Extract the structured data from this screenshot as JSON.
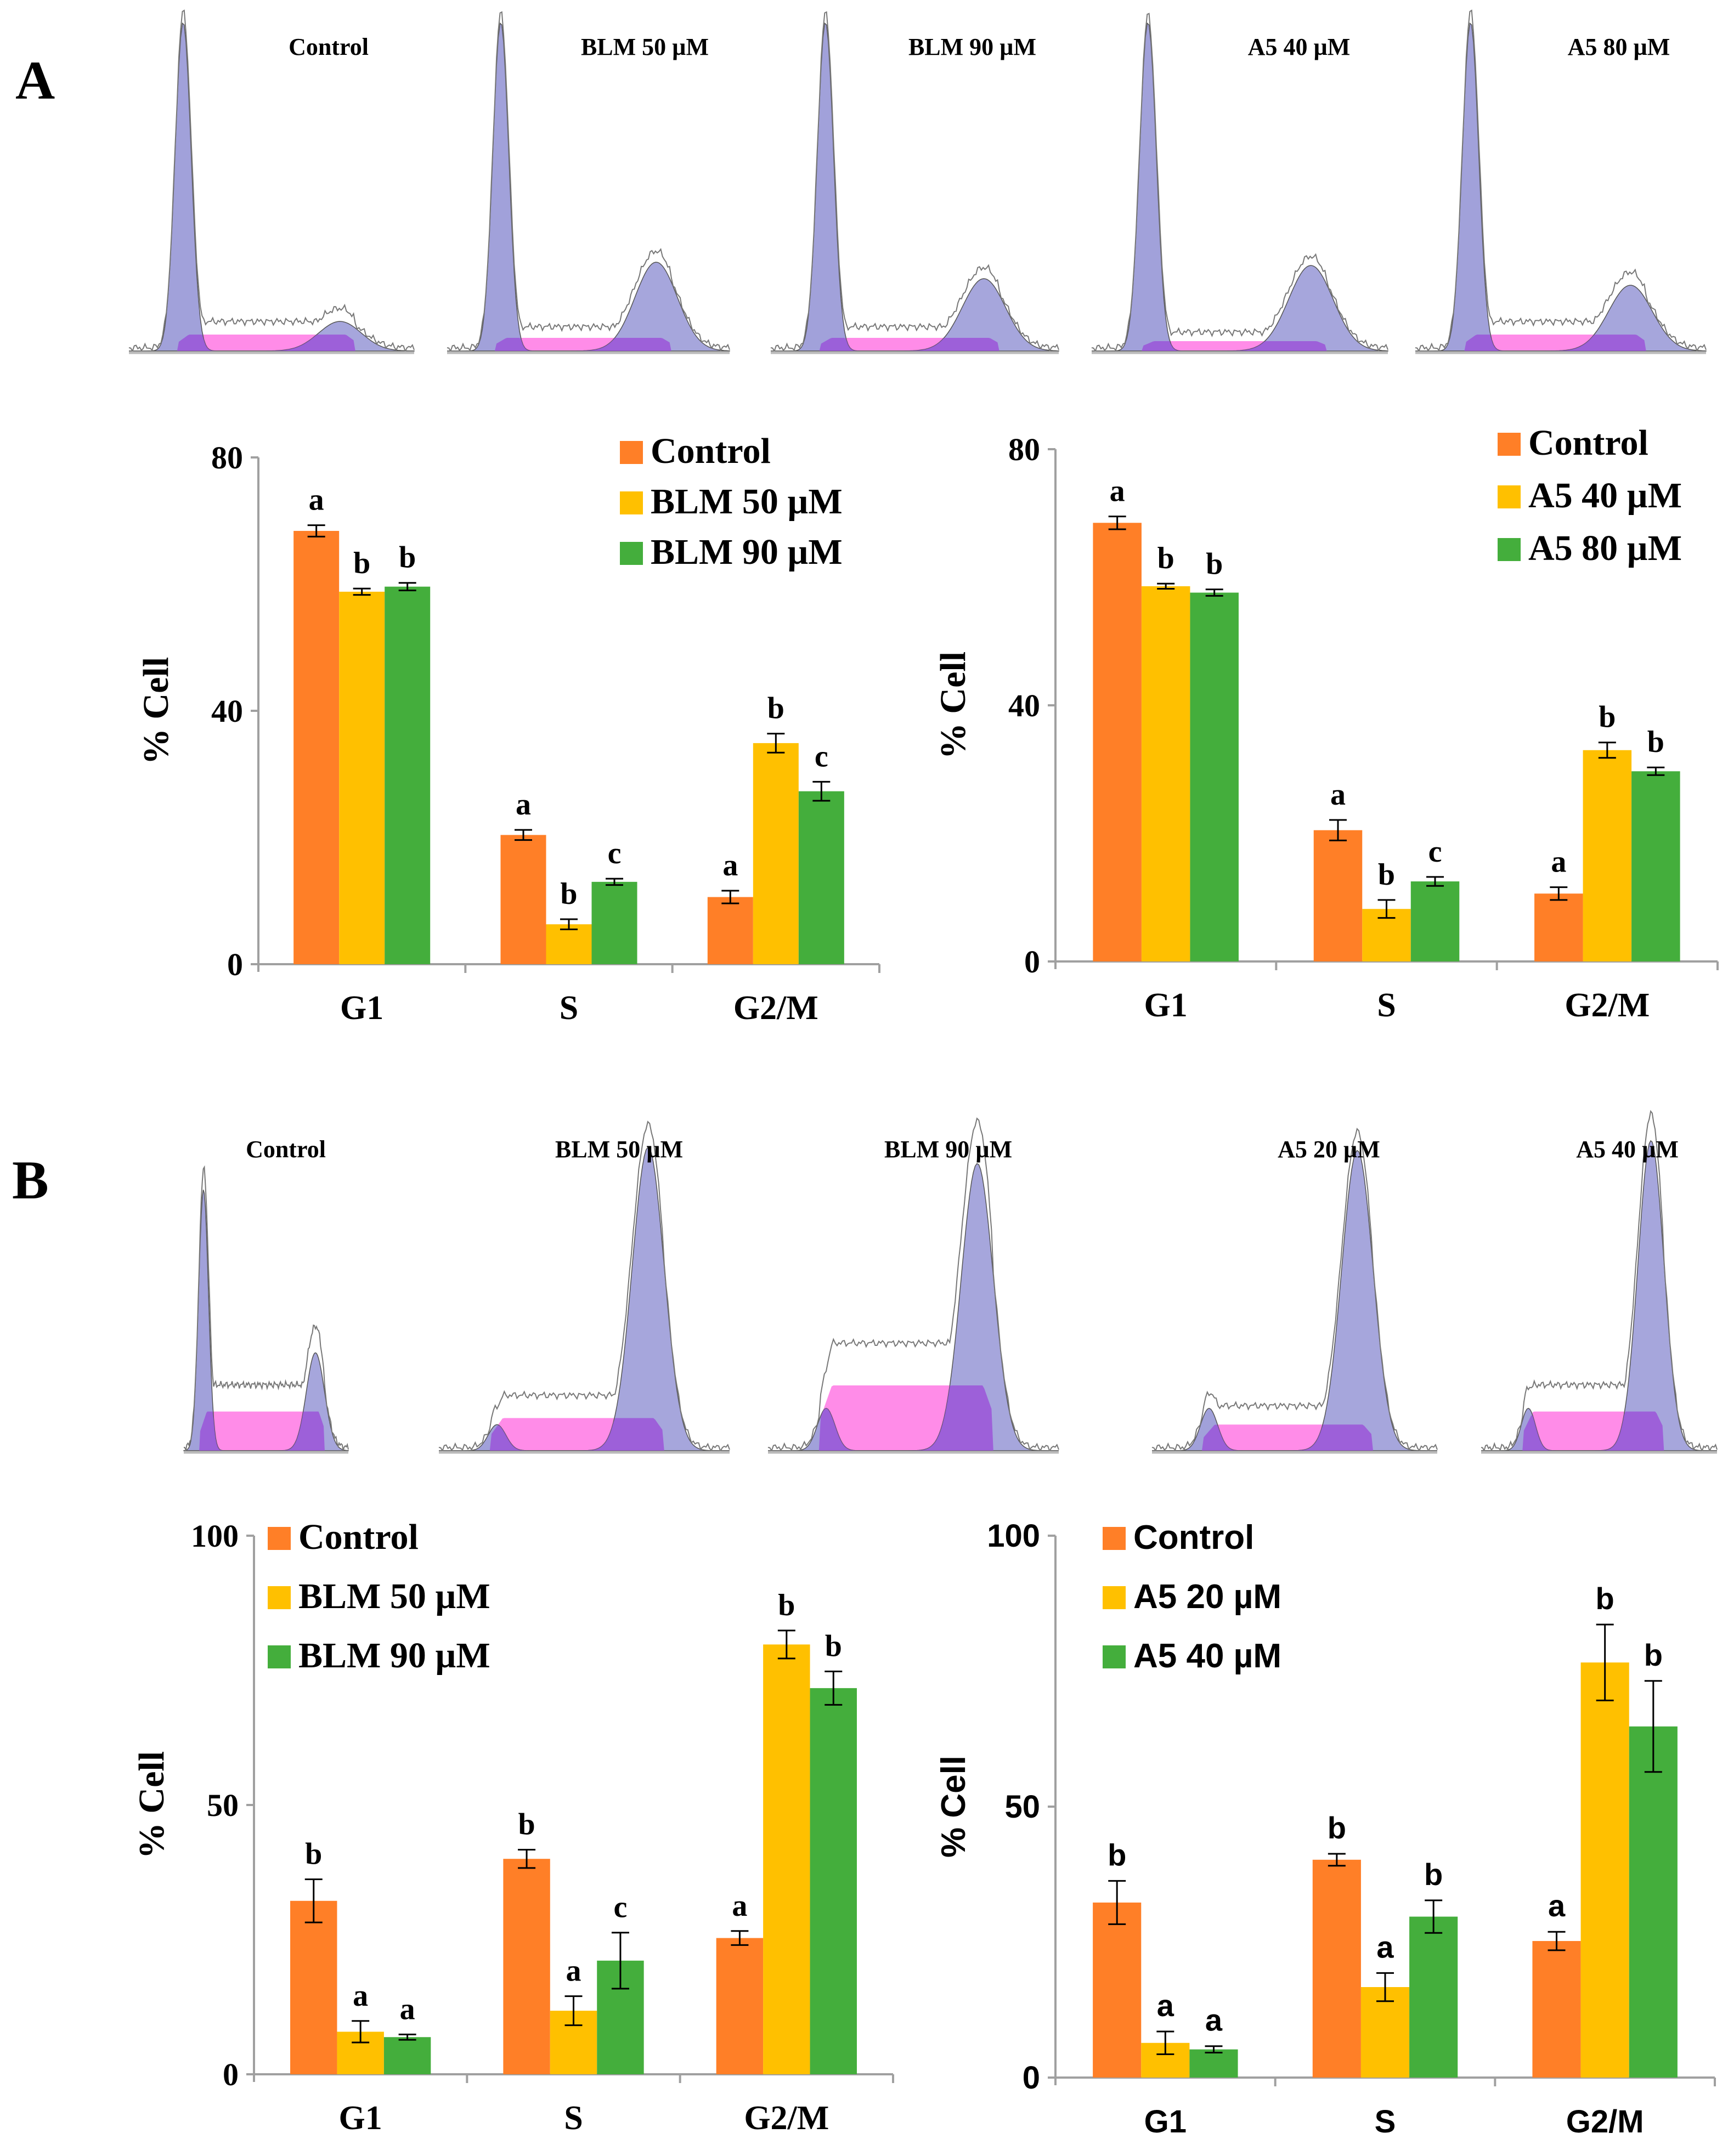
{
  "panels": {
    "A": {
      "label": "A"
    },
    "B": {
      "label": "B"
    }
  },
  "histograms": {
    "A": [
      {
        "title": "Control",
        "g1_peak": 1.0,
        "s_level": 0.05,
        "g2_peak": 0.09
      },
      {
        "title": "BLM 50 µM",
        "g1_peak": 1.0,
        "s_level": 0.04,
        "g2_peak": 0.27
      },
      {
        "title": "BLM 90 µM",
        "g1_peak": 1.0,
        "s_level": 0.04,
        "g2_peak": 0.22
      },
      {
        "title": "A5 40 µM",
        "g1_peak": 1.0,
        "s_level": 0.03,
        "g2_peak": 0.26
      },
      {
        "title": "A5 80 µM",
        "g1_peak": 1.0,
        "s_level": 0.05,
        "g2_peak": 0.2
      }
    ],
    "B": [
      {
        "title": "Control",
        "g1_peak": 0.8,
        "s_level": 0.12,
        "g2_peak": 0.3
      },
      {
        "title": "BLM 50 µM",
        "g1_peak": 0.08,
        "s_level": 0.1,
        "g2_peak": 0.93
      },
      {
        "title": "BLM 90 µM",
        "g1_peak": 0.13,
        "s_level": 0.2,
        "g2_peak": 0.88
      },
      {
        "title": "A5 20 µM",
        "g1_peak": 0.13,
        "s_level": 0.08,
        "g2_peak": 0.92
      },
      {
        "title": "A5 40 µM",
        "g1_peak": 0.13,
        "s_level": 0.12,
        "g2_peak": 0.95
      }
    ]
  },
  "colors": {
    "control": "#FF7F27",
    "low_dose": "#FFC000",
    "high_dose": "#44AE3C",
    "hist_fill": "#9C9CD8",
    "hist_s": "#FF7FE6",
    "hist_overlap": "#9A4CD8",
    "axis": "#A0A0A0"
  },
  "chart_data": [
    {
      "id": "A-left",
      "type": "bar",
      "title": "",
      "xlabel": "",
      "ylabel": "% Cell",
      "ylim": [
        0,
        80
      ],
      "yticks": [
        0,
        40,
        80
      ],
      "categories": [
        "G1",
        "S",
        "G2/M"
      ],
      "legend_position": "top-right",
      "series": [
        {
          "name": "Control",
          "values": [
            68.4,
            20.4,
            10.6
          ],
          "errors": [
            0.9,
            0.8,
            1.0
          ],
          "letters": [
            "a",
            "a",
            "a"
          ]
        },
        {
          "name": "BLM 50 µM",
          "values": [
            58.8,
            6.3,
            34.9
          ],
          "errors": [
            0.5,
            0.8,
            1.5
          ],
          "letters": [
            "b",
            "b",
            "b"
          ]
        },
        {
          "name": "BLM 90 µM",
          "values": [
            59.6,
            13.0,
            27.3
          ],
          "errors": [
            0.6,
            0.5,
            1.5
          ],
          "letters": [
            "b",
            "c",
            "c"
          ]
        }
      ]
    },
    {
      "id": "A-right",
      "type": "bar",
      "title": "",
      "xlabel": "",
      "ylabel": "% Cell",
      "ylim": [
        0,
        80
      ],
      "yticks": [
        0,
        40,
        80
      ],
      "categories": [
        "G1",
        "S",
        "G2/M"
      ],
      "legend_position": "top-right",
      "series": [
        {
          "name": "Control",
          "values": [
            68.5,
            20.5,
            10.6
          ],
          "errors": [
            1.0,
            1.6,
            1.0
          ],
          "letters": [
            "a",
            "a",
            "a"
          ]
        },
        {
          "name": "A5 40 µM",
          "values": [
            58.6,
            8.2,
            33.0
          ],
          "errors": [
            0.4,
            1.4,
            1.2
          ],
          "letters": [
            "b",
            "b",
            "b"
          ]
        },
        {
          "name": "A5 80 µM",
          "values": [
            57.6,
            12.5,
            29.7
          ],
          "errors": [
            0.5,
            0.7,
            0.6
          ],
          "letters": [
            "b",
            "c",
            "b"
          ]
        }
      ]
    },
    {
      "id": "B-left",
      "type": "bar",
      "title": "",
      "xlabel": "",
      "ylabel": "% Cell",
      "ylim": [
        0,
        100
      ],
      "yticks": [
        0,
        50,
        100
      ],
      "categories": [
        "G1",
        "S",
        "G2/M"
      ],
      "legend_position": "top-left",
      "series": [
        {
          "name": "Control",
          "values": [
            32.2,
            40.0,
            25.3
          ],
          "errors": [
            4.0,
            1.7,
            1.3
          ],
          "letters": [
            "b",
            "b",
            "a"
          ]
        },
        {
          "name": "BLM 50 µM",
          "values": [
            7.9,
            11.8,
            79.8
          ],
          "errors": [
            2.0,
            2.7,
            2.6
          ],
          "letters": [
            "a",
            "a",
            "b"
          ]
        },
        {
          "name": "BLM 90 µM",
          "values": [
            6.9,
            21.1,
            71.7
          ],
          "errors": [
            0.5,
            5.2,
            3.1
          ],
          "letters": [
            "a",
            "c",
            "b"
          ]
        }
      ]
    },
    {
      "id": "B-right",
      "type": "bar",
      "title": "",
      "xlabel": "",
      "ylabel": "% Cell",
      "ylim": [
        0,
        100
      ],
      "yticks": [
        0,
        50,
        100
      ],
      "categories": [
        "G1",
        "S",
        "G2/M"
      ],
      "legend_position": "top-left",
      "series": [
        {
          "name": "Control",
          "values": [
            32.3,
            40.2,
            25.2
          ],
          "errors": [
            4.0,
            1.1,
            1.7
          ],
          "letters": [
            "b",
            "b",
            "a"
          ]
        },
        {
          "name": "A5 20 µM",
          "values": [
            6.4,
            16.7,
            76.6
          ],
          "errors": [
            2.1,
            2.6,
            7.0
          ],
          "letters": [
            "a",
            "a",
            "b"
          ]
        },
        {
          "name": "A5 40 µM",
          "values": [
            5.2,
            29.7,
            64.8
          ],
          "errors": [
            0.6,
            3.0,
            8.4
          ],
          "letters": [
            "a",
            "b",
            "b"
          ]
        }
      ]
    }
  ]
}
